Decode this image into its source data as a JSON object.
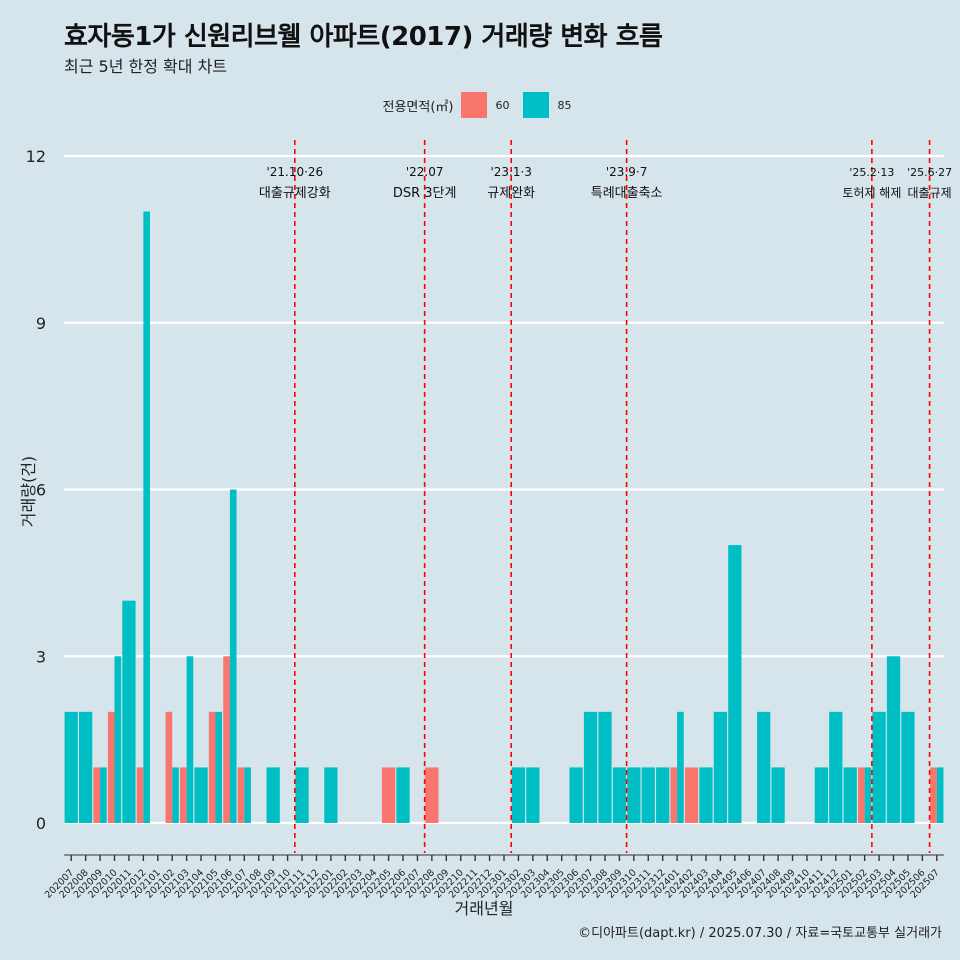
{
  "header": {
    "title": "효자동1가 신원리브웰 아파트(2017) 거래량 변화 흐름",
    "subtitle": "최근 5년 한정 확대 차트"
  },
  "legend": {
    "title": "전용면적(㎡)",
    "items": [
      {
        "label": "60",
        "color": "#f8766d"
      },
      {
        "label": "85",
        "color": "#00bfc4"
      }
    ]
  },
  "caption": "©디아파트(dapt.kr) / 2025.07.30 / 자료=국토교통부 실거래가",
  "chart_data": {
    "type": "bar",
    "title": "효자동1가 신원리브웰 아파트(2017) 거래량 변화 흐름",
    "xlabel": "거래년월",
    "ylabel": "거래량(건)",
    "ylim": [
      0,
      12
    ],
    "yticks": [
      0,
      3,
      6,
      9,
      12
    ],
    "categories": [
      "202007",
      "202008",
      "202009",
      "202010",
      "202011",
      "202012",
      "202101",
      "202102",
      "202103",
      "202104",
      "202105",
      "202106",
      "202107",
      "202108",
      "202109",
      "202110",
      "202111",
      "202112",
      "202201",
      "202202",
      "202203",
      "202204",
      "202205",
      "202206",
      "202207",
      "202208",
      "202209",
      "202210",
      "202211",
      "202212",
      "202301",
      "202302",
      "202303",
      "202304",
      "202305",
      "202306",
      "202307",
      "202308",
      "202309",
      "202310",
      "202311",
      "202312",
      "202401",
      "202402",
      "202403",
      "202404",
      "202405",
      "202406",
      "202407",
      "202408",
      "202409",
      "202410",
      "202411",
      "202412",
      "202501",
      "202502",
      "202503",
      "202504",
      "202505",
      "202506",
      "202507"
    ],
    "series": [
      {
        "name": "60",
        "color": "#f8766d",
        "values": [
          0,
          0,
          1,
          2,
          0,
          1,
          0,
          2,
          1,
          0,
          2,
          3,
          1,
          0,
          0,
          0,
          0,
          0,
          0,
          0,
          0,
          0,
          1,
          0,
          0,
          1,
          0,
          0,
          0,
          0,
          0,
          0,
          0,
          0,
          0,
          0,
          0,
          0,
          0,
          0,
          0,
          0,
          1,
          1,
          0,
          0,
          0,
          0,
          0,
          0,
          0,
          0,
          0,
          0,
          0,
          1,
          0,
          0,
          0,
          0,
          1
        ]
      },
      {
        "name": "85",
        "color": "#00bfc4",
        "values": [
          2,
          2,
          1,
          3,
          4,
          11,
          0,
          1,
          3,
          1,
          2,
          6,
          1,
          0,
          1,
          0,
          1,
          0,
          1,
          0,
          0,
          0,
          0,
          1,
          0,
          0,
          0,
          0,
          0,
          0,
          0,
          1,
          1,
          0,
          0,
          1,
          2,
          2,
          1,
          1,
          1,
          1,
          2,
          0,
          1,
          2,
          5,
          0,
          2,
          1,
          0,
          0,
          1,
          2,
          1,
          1,
          2,
          3,
          2,
          0,
          1
        ]
      }
    ],
    "events": [
      {
        "index": 15.5,
        "date": "'21.10·26",
        "label": "대출규제강화"
      },
      {
        "index": 24.5,
        "date": "'22.07",
        "label": "DSR 3단계"
      },
      {
        "index": 30.5,
        "date": "'23.1·3",
        "label": "규제완화"
      },
      {
        "index": 38.5,
        "date": "'23.9·7",
        "label": "특례대출축소"
      },
      {
        "index": 55.5,
        "date": "'25.2·13",
        "label": "토허제 해제"
      },
      {
        "index": 59.5,
        "date": "'25.6·27",
        "label": "대출규제"
      }
    ]
  }
}
